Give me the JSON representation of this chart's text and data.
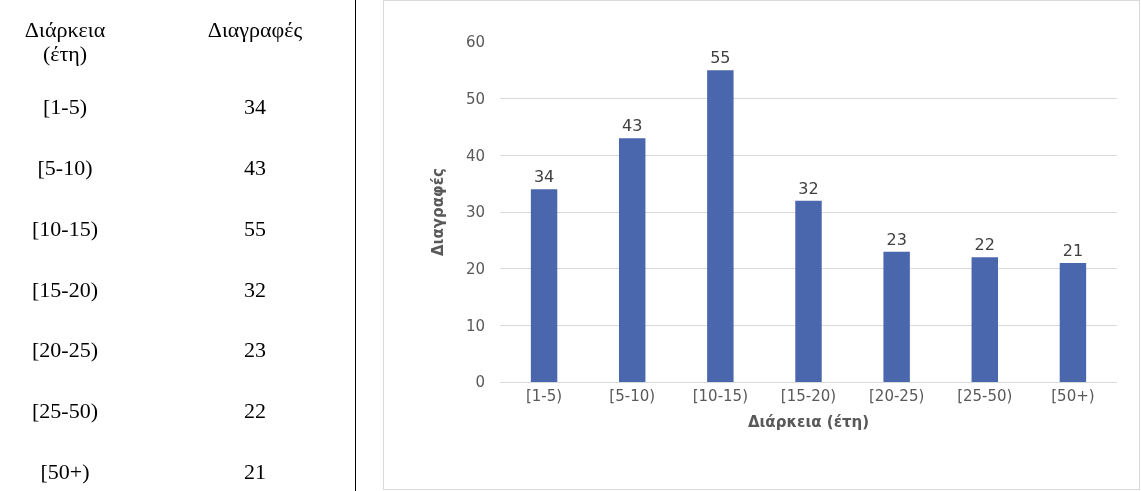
{
  "chart_data": [
    {
      "type": "other",
      "xlabel": "Διάρκεια (έτη)",
      "ylabel": "Διαγραφές",
      "categories": [
        "[1-5)",
        "[5-10)",
        "[10-15)",
        "[15-20)",
        "[20-25)",
        "[25-50)",
        "[50+)"
      ],
      "values": [
        34,
        43,
        55,
        32,
        23,
        22,
        21
      ],
      "data_labels": true
    },
    {
      "type": "bar",
      "xlabel": "Διάρκεια (έτη)",
      "ylabel": "Διαγραφές",
      "categories": [
        "[1-5)",
        "[5-10)",
        "[10-15)",
        "[15-20)",
        "[20-25)",
        "[25-50)",
        "[50+)"
      ],
      "values": [
        34,
        43,
        55,
        32,
        23,
        22,
        21
      ],
      "color": "#4a66ac",
      "ylim": [
        0,
        60
      ],
      "yticks": [
        0,
        10,
        20,
        30,
        40,
        50,
        60
      ],
      "grid": "y",
      "data_labels": true
    }
  ]
}
